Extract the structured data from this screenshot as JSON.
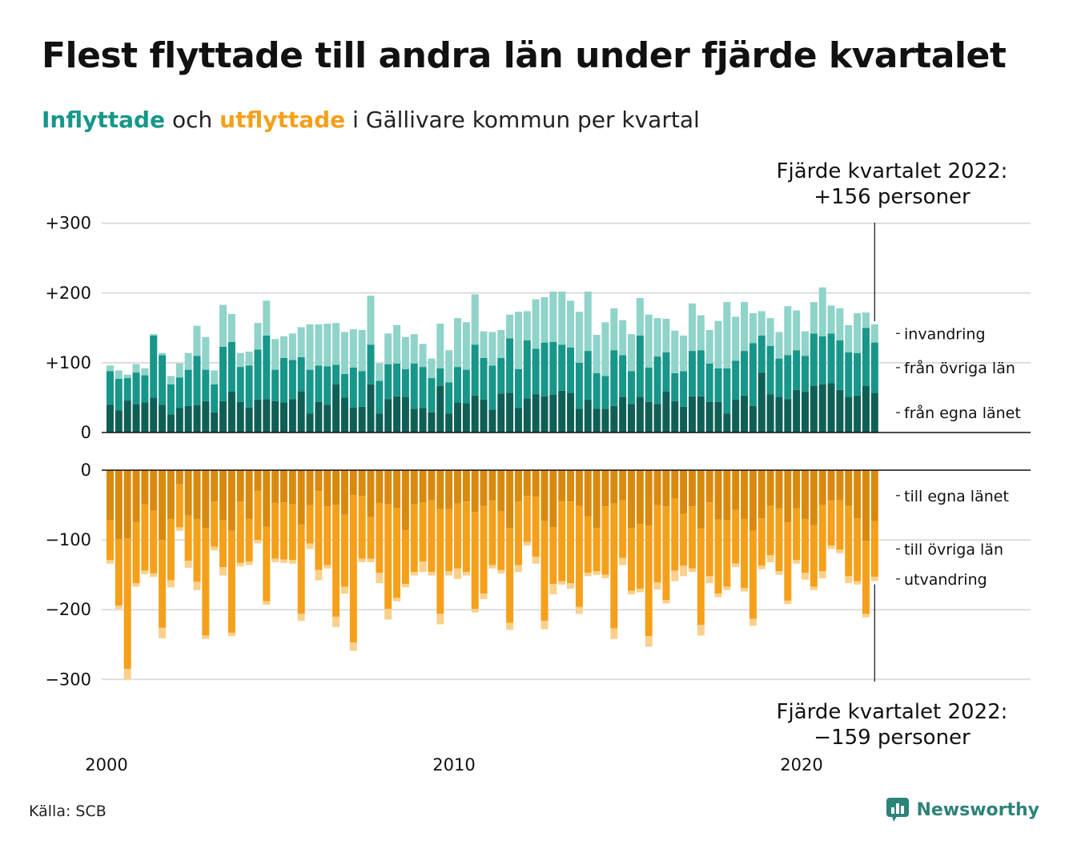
{
  "title": "Flest flyttade till andra län under fjärde kvartalet",
  "subtitle": {
    "in": "Inflyttade",
    "mid": " och ",
    "out": "utflyttade",
    "rest": " i Gällivare kommun per kvartal"
  },
  "source": "Källa: SCB",
  "brand": "Newsworthy",
  "colors": {
    "in_own": "#0f5f56",
    "in_other": "#17968a",
    "in_immig": "#8fd3c9",
    "out_own": "#d98a0e",
    "out_other": "#f5a01a",
    "out_emig": "#fbd08a",
    "grid": "#dddddd"
  },
  "chart_data": {
    "type": "bar",
    "stacked": true,
    "x_start": "2000 Q1",
    "x_ticks": [
      "2000",
      "2010",
      "2020"
    ],
    "y_ticks_in": [
      "+300",
      "+200",
      "+100",
      "0"
    ],
    "y_ticks_out": [
      "0",
      "−100",
      "−200",
      "−300"
    ],
    "ylim_in": [
      0,
      300
    ],
    "ylim_out": [
      -300,
      0
    ],
    "annotation_in": [
      "Fjärde kvartalet 2022:",
      "+156 personer"
    ],
    "annotation_out": [
      "Fjärde kvartalet 2022:",
      "−159 personer"
    ],
    "series_in": [
      {
        "name": "från egna länet",
        "values": [
          40,
          32,
          46,
          41,
          43,
          50,
          40,
          26,
          35,
          38,
          39,
          45,
          29,
          45,
          59,
          44,
          36,
          47,
          48,
          45,
          43,
          48,
          59,
          27,
          44,
          40,
          69,
          50,
          36,
          37,
          69,
          27,
          48,
          52,
          51,
          34,
          35,
          29,
          67,
          27,
          43,
          42,
          53,
          47,
          33,
          56,
          57,
          35,
          49,
          55,
          52,
          54,
          60,
          57,
          34,
          47,
          34,
          34,
          38,
          51,
          41,
          51,
          44,
          41,
          59,
          45,
          37,
          52,
          52,
          44,
          44,
          27,
          47,
          53,
          38,
          86,
          55,
          51,
          48,
          61,
          58,
          67,
          69,
          71,
          61,
          51,
          53,
          67,
          57
        ]
      },
      {
        "name": "från övriga län",
        "values": [
          48,
          45,
          32,
          45,
          39,
          89,
          71,
          43,
          44,
          52,
          71,
          45,
          40,
          78,
          71,
          50,
          60,
          72,
          91,
          45,
          64,
          56,
          49,
          63,
          52,
          55,
          28,
          34,
          57,
          51,
          57,
          47,
          50,
          47,
          40,
          65,
          59,
          49,
          25,
          45,
          51,
          48,
          73,
          60,
          63,
          51,
          78,
          56,
          83,
          65,
          77,
          76,
          66,
          65,
          66,
          70,
          51,
          47,
          80,
          60,
          47,
          88,
          49,
          68,
          56,
          40,
          51,
          65,
          66,
          55,
          48,
          65,
          56,
          64,
          90,
          53,
          69,
          55,
          63,
          57,
          52,
          75,
          69,
          71,
          71,
          64,
          61,
          83,
          72
        ]
      },
      {
        "name": "invandring",
        "values": [
          8,
          12,
          5,
          12,
          10,
          2,
          3,
          12,
          20,
          24,
          43,
          47,
          20,
          60,
          40,
          20,
          20,
          38,
          50,
          44,
          31,
          38,
          43,
          65,
          59,
          61,
          60,
          60,
          55,
          59,
          70,
          25,
          44,
          55,
          46,
          42,
          33,
          28,
          64,
          46,
          70,
          68,
          72,
          38,
          48,
          40,
          34,
          82,
          42,
          71,
          65,
          72,
          76,
          67,
          73,
          85,
          55,
          77,
          60,
          50,
          53,
          54,
          76,
          55,
          48,
          61,
          51,
          68,
          50,
          48,
          68,
          95,
          63,
          70,
          43,
          35,
          40,
          38,
          70,
          57,
          35,
          45,
          70,
          40,
          46,
          39,
          57,
          22,
          26
        ]
      }
    ],
    "series_out": [
      {
        "name": "till egna länet",
        "values": [
          -72,
          -99,
          -98,
          -74,
          -49,
          -58,
          -100,
          -70,
          -20,
          -65,
          -70,
          -83,
          -45,
          -72,
          -87,
          -45,
          -70,
          -30,
          -81,
          -47,
          -46,
          -49,
          -78,
          -50,
          -30,
          -52,
          -50,
          -64,
          -36,
          -37,
          -67,
          -47,
          -49,
          -54,
          -86,
          -49,
          -46,
          -43,
          -56,
          -56,
          -48,
          -45,
          -60,
          -51,
          -44,
          -59,
          -83,
          -45,
          -37,
          -38,
          -73,
          -82,
          -45,
          -45,
          -51,
          -66,
          -83,
          -52,
          -48,
          -43,
          -83,
          -77,
          -80,
          -50,
          -52,
          -41,
          -62,
          -52,
          -84,
          -46,
          -71,
          -72,
          -57,
          -70,
          -87,
          -69,
          -51,
          -55,
          -75,
          -55,
          -70,
          -79,
          -50,
          -44,
          -43,
          -51,
          -69,
          -101,
          -73
        ]
      },
      {
        "name": "till övriga län",
        "values": [
          -57,
          -95,
          -187,
          -88,
          -95,
          -90,
          -126,
          -88,
          -62,
          -65,
          -90,
          -154,
          -65,
          -67,
          -146,
          -88,
          -61,
          -70,
          -107,
          -80,
          -82,
          -80,
          -128,
          -55,
          -113,
          -84,
          -160,
          -103,
          -211,
          -90,
          -60,
          -100,
          -150,
          -129,
          -77,
          -97,
          -85,
          -103,
          -150,
          -89,
          -93,
          -101,
          -139,
          -126,
          -92,
          -84,
          -136,
          -91,
          -66,
          -86,
          -143,
          -81,
          -114,
          -117,
          -145,
          -81,
          -62,
          -98,
          -179,
          -83,
          -90,
          -93,
          -158,
          -111,
          -134,
          -103,
          -75,
          -89,
          -138,
          -106,
          -106,
          -95,
          -77,
          -99,
          -126,
          -68,
          -71,
          -90,
          -112,
          -74,
          -77,
          -88,
          -95,
          -64,
          -71,
          -101,
          -90,
          -105,
          -80
        ]
      },
      {
        "name": "utvandring",
        "values": [
          -5,
          -5,
          -15,
          -5,
          -5,
          -5,
          -15,
          -10,
          -5,
          -10,
          -12,
          -5,
          -5,
          -12,
          -5,
          -5,
          -5,
          -5,
          -5,
          -5,
          -5,
          -5,
          -10,
          -8,
          -15,
          -5,
          -15,
          -10,
          -12,
          -5,
          -5,
          -15,
          -15,
          -5,
          -5,
          -5,
          -15,
          -5,
          -15,
          -6,
          -15,
          -5,
          -5,
          -8,
          -5,
          -5,
          -10,
          -10,
          -5,
          -10,
          -12,
          -15,
          -5,
          -8,
          -10,
          -5,
          -5,
          -5,
          -15,
          -10,
          -5,
          -5,
          -15,
          -10,
          -5,
          -15,
          -15,
          -5,
          -15,
          -10,
          -5,
          -5,
          -5,
          -5,
          -10,
          -5,
          -10,
          -5,
          -5,
          -5,
          -10,
          -5,
          -10,
          -5,
          -5,
          -10,
          -5,
          -5,
          -6
        ]
      }
    ]
  }
}
